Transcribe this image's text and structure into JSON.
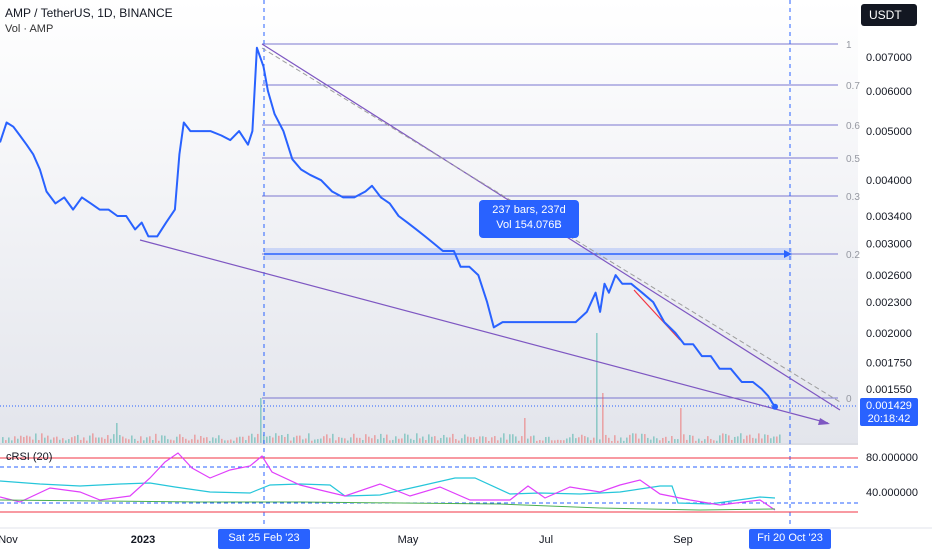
{
  "header": {
    "symbol_line": "AMP / TetherUS, 1D, BINANCE",
    "volume_label": "Vol · AMP"
  },
  "currency_button": "USDT",
  "measure": {
    "line1": "237 bars, 237d",
    "line2": "Vol 154.076B"
  },
  "price_badge": {
    "price": "0.001429",
    "countdown": "20:18:42"
  },
  "crosshair_labels": {
    "left": "Sat 25 Feb '23",
    "right": "Fri 20 Oct '23"
  },
  "indicator": {
    "label": "cRSI (20)",
    "ticks": [
      "80.000000",
      "40.000000"
    ]
  },
  "fib_labels": [
    "1",
    "0.7",
    "0.6",
    "0.5",
    "0.3",
    "0.2",
    "0"
  ],
  "colors": {
    "price_line": "#2962ff",
    "fib_line": "#7b77d0",
    "trend_line": "#7e57c2",
    "red_segment": "#f23645",
    "crsi_magenta": "#e040fb",
    "crsi_teal": "#26c6da",
    "crsi_green": "#4caf50",
    "band_red": "#f23645",
    "badge_blue": "#2962ff"
  },
  "chart_data": {
    "type": "line",
    "title": "AMP / TetherUS, 1D, BINANCE",
    "xlabel": "",
    "ylabel": "",
    "y_scale": "log",
    "ylim": [
      0.00135,
      0.0079
    ],
    "x_tick_labels": [
      "Nov",
      "2023",
      "May",
      "Jul",
      "Sep"
    ],
    "y_tick_labels": [
      "0.007000",
      "0.006000",
      "0.005000",
      "0.004000",
      "0.003400",
      "0.003000",
      "0.002600",
      "0.002300",
      "0.002000",
      "0.001750",
      "0.001550"
    ],
    "y_ticks": [
      0.007,
      0.006,
      0.005,
      0.004,
      0.0034,
      0.003,
      0.0026,
      0.0023,
      0.002,
      0.00175,
      0.00155
    ],
    "series": [
      {
        "values_day_price": [
          [
            0,
            0.00475
          ],
          [
            3,
            0.0052
          ],
          [
            6,
            0.0051
          ],
          [
            9,
            0.0049
          ],
          [
            12,
            0.0047
          ],
          [
            15,
            0.0045
          ],
          [
            18,
            0.0042
          ],
          [
            21,
            0.0038
          ],
          [
            25,
            0.0036
          ],
          [
            29,
            0.0037
          ],
          [
            33,
            0.0035
          ],
          [
            37,
            0.0037
          ],
          [
            41,
            0.0036
          ],
          [
            45,
            0.0035
          ],
          [
            49,
            0.0035
          ],
          [
            53,
            0.0034
          ],
          [
            57,
            0.0034
          ],
          [
            61,
            0.0032
          ],
          [
            64,
            0.0033
          ],
          [
            67,
            0.0031
          ],
          [
            71,
            0.0031
          ],
          [
            75,
            0.0033
          ],
          [
            79,
            0.0035
          ],
          [
            81,
            0.0045
          ],
          [
            83,
            0.0052
          ],
          [
            86,
            0.005
          ],
          [
            90,
            0.005
          ],
          [
            95,
            0.005
          ],
          [
            100,
            0.0049
          ],
          [
            104,
            0.0048
          ],
          [
            108,
            0.005
          ],
          [
            112,
            0.0047
          ],
          [
            114,
            0.005
          ],
          [
            116,
            0.0073
          ],
          [
            119,
            0.0067
          ],
          [
            121,
            0.006
          ],
          [
            124,
            0.0054
          ],
          [
            128,
            0.005
          ],
          [
            132,
            0.0044
          ],
          [
            136,
            0.0042
          ],
          [
            140,
            0.0041
          ],
          [
            145,
            0.004
          ],
          [
            150,
            0.0038
          ],
          [
            155,
            0.0037
          ],
          [
            160,
            0.0037
          ],
          [
            165,
            0.0038
          ],
          [
            168,
            0.0039
          ],
          [
            172,
            0.0037
          ],
          [
            176,
            0.0036
          ],
          [
            180,
            0.0034
          ],
          [
            184,
            0.0033
          ],
          [
            188,
            0.0032
          ],
          [
            192,
            0.0031
          ],
          [
            196,
            0.003
          ],
          [
            200,
            0.0029
          ],
          [
            205,
            0.0029
          ],
          [
            208,
            0.0027
          ],
          [
            212,
            0.0027
          ],
          [
            216,
            0.0026
          ],
          [
            220,
            0.0023
          ],
          [
            223,
            0.00205
          ],
          [
            227,
            0.0021
          ],
          [
            231,
            0.0021
          ],
          [
            235,
            0.0021
          ],
          [
            240,
            0.0021
          ],
          [
            245,
            0.0021
          ],
          [
            250,
            0.0021
          ],
          [
            255,
            0.0021
          ],
          [
            260,
            0.0021
          ],
          [
            265,
            0.0022
          ],
          [
            269,
            0.0024
          ],
          [
            271,
            0.0022
          ],
          [
            273,
            0.0025
          ],
          [
            275,
            0.0024
          ],
          [
            278,
            0.0026
          ],
          [
            281,
            0.0025
          ],
          [
            285,
            0.0025
          ],
          [
            290,
            0.0024
          ],
          [
            295,
            0.0023
          ],
          [
            300,
            0.0021
          ],
          [
            305,
            0.002
          ],
          [
            309,
            0.0019
          ],
          [
            313,
            0.0019
          ],
          [
            317,
            0.0018
          ],
          [
            321,
            0.0018
          ],
          [
            325,
            0.0017
          ],
          [
            330,
            0.0017
          ],
          [
            335,
            0.0016
          ],
          [
            340,
            0.0016
          ],
          [
            344,
            0.00155
          ],
          [
            347,
            0.0015
          ],
          [
            349,
            0.00145
          ],
          [
            350,
            0.00143
          ]
        ]
      }
    ]
  }
}
